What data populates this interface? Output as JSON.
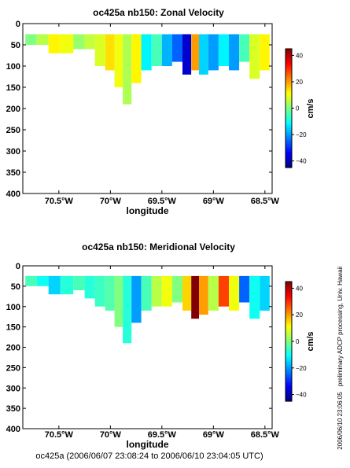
{
  "footer": "oc425a (2006/06/07 23:08:24 to 2006/06/10 23:04:05 UTC)",
  "side_note_processing": "preliminary ADCP processing,  Univ. Hawaii",
  "side_note_date": "2006/06/10 23:06:05",
  "chart_data": [
    {
      "type": "heatmap",
      "title": "oc425a nb150: Zonal Velocity",
      "xlabel": "longitude",
      "ylabel": "",
      "xlim": [
        -70.85,
        -68.43
      ],
      "ylim": [
        400,
        0
      ],
      "x_ticks": [
        -70.5,
        -70.0,
        -69.5,
        -69.0,
        -68.5
      ],
      "x_tick_labels": [
        "70.5°W",
        "70°W",
        "69.5°W",
        "69°W",
        "68.5°W"
      ],
      "y_ticks": [
        0,
        50,
        100,
        150,
        200,
        250,
        300,
        350,
        400
      ],
      "y_tick_labels": [
        "0",
        "50",
        "100",
        "150",
        "200",
        "250",
        "300",
        "350",
        "400"
      ],
      "colorbar": {
        "label": "cm/s",
        "range": [
          -45,
          45
        ],
        "ticks": [
          -40,
          -20,
          0,
          20,
          40
        ],
        "tick_labels": [
          "−40",
          "−20",
          "0",
          "20",
          "40"
        ]
      },
      "grid": false,
      "data_bins": [
        {
          "lon": -70.78,
          "bottom": 50,
          "value": 0
        },
        {
          "lon": -70.65,
          "bottom": 50,
          "value": 5
        },
        {
          "lon": -70.55,
          "bottom": 70,
          "value": 12
        },
        {
          "lon": -70.42,
          "bottom": 70,
          "value": 10
        },
        {
          "lon": -70.3,
          "bottom": 60,
          "value": 2
        },
        {
          "lon": -70.2,
          "bottom": 60,
          "value": 6
        },
        {
          "lon": -70.1,
          "bottom": 100,
          "value": 8
        },
        {
          "lon": -70.0,
          "bottom": 110,
          "value": 14
        },
        {
          "lon": -69.92,
          "bottom": 150,
          "value": 10
        },
        {
          "lon": -69.84,
          "bottom": 190,
          "value": 4
        },
        {
          "lon": -69.75,
          "bottom": 140,
          "value": 12
        },
        {
          "lon": -69.65,
          "bottom": 110,
          "value": -12
        },
        {
          "lon": -69.55,
          "bottom": 100,
          "value": -5
        },
        {
          "lon": -69.45,
          "bottom": 100,
          "value": -18
        },
        {
          "lon": -69.35,
          "bottom": 90,
          "value": -25
        },
        {
          "lon": -69.25,
          "bottom": 120,
          "value": -38
        },
        {
          "lon": -69.18,
          "bottom": 110,
          "value": 20
        },
        {
          "lon": -69.1,
          "bottom": 120,
          "value": -15
        },
        {
          "lon": -69.0,
          "bottom": 110,
          "value": -20
        },
        {
          "lon": -68.9,
          "bottom": 100,
          "value": -12
        },
        {
          "lon": -68.8,
          "bottom": 110,
          "value": -20
        },
        {
          "lon": -68.7,
          "bottom": 90,
          "value": -5
        },
        {
          "lon": -68.6,
          "bottom": 130,
          "value": 8
        },
        {
          "lon": -68.5,
          "bottom": 110,
          "value": 12
        }
      ]
    },
    {
      "type": "heatmap",
      "title": "oc425a nb150: Meridional Velocity",
      "xlabel": "longitude",
      "ylabel": "",
      "xlim": [
        -70.85,
        -68.43
      ],
      "ylim": [
        400,
        0
      ],
      "x_ticks": [
        -70.5,
        -70.0,
        -69.5,
        -69.0,
        -68.5
      ],
      "x_tick_labels": [
        "70.5°W",
        "70°W",
        "69.5°W",
        "69°W",
        "68.5°W"
      ],
      "y_ticks": [
        0,
        50,
        100,
        150,
        200,
        250,
        300,
        350,
        400
      ],
      "y_tick_labels": [
        "0",
        "50",
        "100",
        "150",
        "200",
        "250",
        "300",
        "350",
        "400"
      ],
      "colorbar": {
        "label": "cm/s",
        "range": [
          -45,
          45
        ],
        "ticks": [
          -40,
          -20,
          0,
          20,
          40
        ],
        "tick_labels": [
          "−40",
          "−20",
          "0",
          "20",
          "40"
        ]
      },
      "grid": false,
      "data_bins": [
        {
          "lon": -70.78,
          "bottom": 50,
          "value": -5
        },
        {
          "lon": -70.65,
          "bottom": 50,
          "value": -10
        },
        {
          "lon": -70.55,
          "bottom": 70,
          "value": -15
        },
        {
          "lon": -70.42,
          "bottom": 70,
          "value": -8
        },
        {
          "lon": -70.3,
          "bottom": 60,
          "value": -5
        },
        {
          "lon": -70.2,
          "bottom": 80,
          "value": -8
        },
        {
          "lon": -70.1,
          "bottom": 100,
          "value": -6
        },
        {
          "lon": -70.0,
          "bottom": 110,
          "value": -4
        },
        {
          "lon": -69.92,
          "bottom": 150,
          "value": 0
        },
        {
          "lon": -69.84,
          "bottom": 190,
          "value": -8
        },
        {
          "lon": -69.75,
          "bottom": 140,
          "value": -20
        },
        {
          "lon": -69.65,
          "bottom": 110,
          "value": -5
        },
        {
          "lon": -69.55,
          "bottom": 100,
          "value": 5
        },
        {
          "lon": -69.45,
          "bottom": 100,
          "value": 10
        },
        {
          "lon": -69.35,
          "bottom": 90,
          "value": 0
        },
        {
          "lon": -69.25,
          "bottom": 110,
          "value": 15
        },
        {
          "lon": -69.18,
          "bottom": 130,
          "value": 45
        },
        {
          "lon": -69.1,
          "bottom": 120,
          "value": 20
        },
        {
          "lon": -69.0,
          "bottom": 110,
          "value": 5
        },
        {
          "lon": -68.9,
          "bottom": 100,
          "value": 28
        },
        {
          "lon": -68.8,
          "bottom": 110,
          "value": 10
        },
        {
          "lon": -68.7,
          "bottom": 90,
          "value": -25
        },
        {
          "lon": -68.6,
          "bottom": 130,
          "value": -10
        },
        {
          "lon": -68.5,
          "bottom": 110,
          "value": -15
        }
      ]
    }
  ]
}
